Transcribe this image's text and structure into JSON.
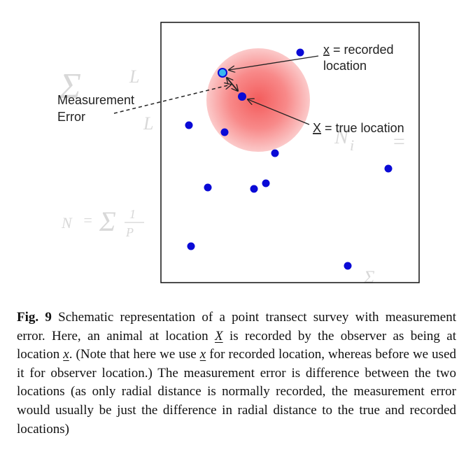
{
  "figure": {
    "label_recorded_var": "x",
    "label_recorded_rest": " = recorded",
    "label_recorded_line2": "location",
    "label_true_var": "X",
    "label_true_rest": " = true location",
    "label_error_line1": "Measurement",
    "label_error_line2": "Error"
  },
  "caption": {
    "fig_label": "Fig. 9",
    "seg1": " Schematic representation of a point transect survey with measurement error. Here, an animal at location ",
    "var_X": "X",
    "seg2": " is recorded by the observer as being at location ",
    "var_x1": "x",
    "seg3": ". (Note that here we use ",
    "var_x2": "x",
    "seg4": " for recorded location, whereas before we used it for observer location.) The measurement error is difference between the two locations (as only radial distance is normally recorded, the measurement error would usually be just the difference in radial distance to the true and recorded locations)"
  }
}
